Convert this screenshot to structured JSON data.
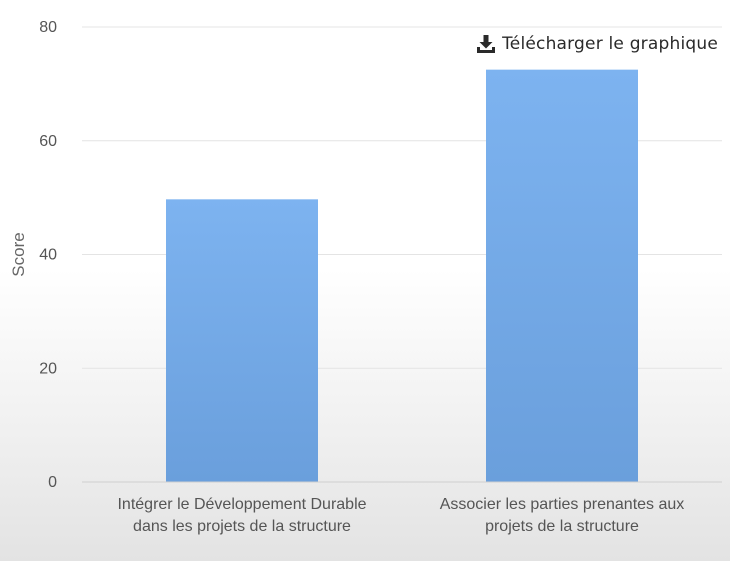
{
  "download": {
    "label": "Télécharger le graphique",
    "icon": "download-icon"
  },
  "chart_data": {
    "type": "bar",
    "categories": [
      [
        "Intégrer le Développement Durable",
        "dans les projets de la structure"
      ],
      [
        "Associer les parties prenantes aux",
        "projets de la structure"
      ]
    ],
    "values": [
      49.7,
      72.5
    ],
    "ylabel": "Score",
    "ylim": [
      0,
      80
    ],
    "yticks": [
      0,
      20,
      40,
      60,
      80
    ],
    "grid": true,
    "bar_color": "#7aaeea"
  }
}
